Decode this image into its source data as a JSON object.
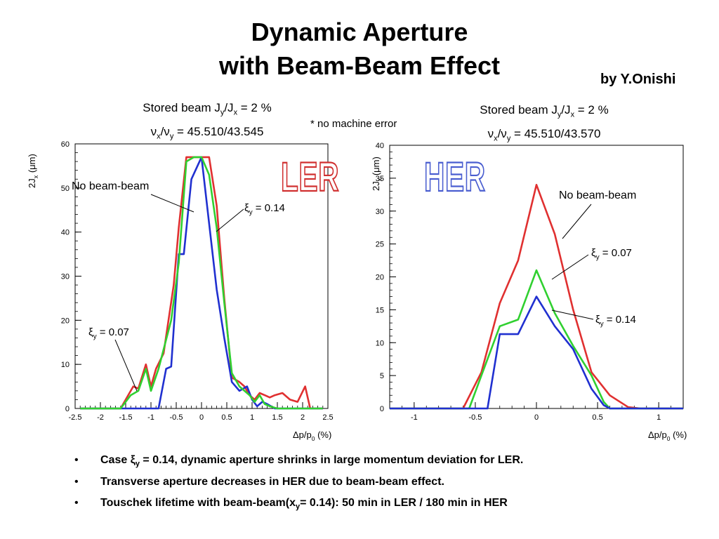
{
  "title_line1": "Dynamic Aperture",
  "title_line2": "with Beam-Beam Effect",
  "byline": "by Y.Onishi",
  "note": "* no machine error",
  "ler_condition": {
    "line1_prefix": "Stored beam J",
    "line1_sub1": "y",
    "line1_mid": "/J",
    "line1_sub2": "x",
    "line1_suffix": " = 2 %",
    "line2_nu": "ν",
    "line2_sub1": "x",
    "line2_mid": "/ν",
    "line2_sub2": "y",
    "line2_suffix": " = 45.510/43.545"
  },
  "her_condition": {
    "line1_prefix": "Stored beam J",
    "line1_sub1": "y",
    "line1_mid": "/J",
    "line1_sub2": "x",
    "line1_suffix": " = 2 %",
    "line2_nu": "ν",
    "line2_sub1": "x",
    "line2_mid": "/ν",
    "line2_sub2": "y",
    "line2_suffix": " = 45.510/43.570"
  },
  "bullets": {
    "b1_pre": "Case ",
    "b1_xi": "ξ",
    "b1_sub": "y",
    "b1_post": " = 0.14, dynamic aperture shrinks in large momentum deviation for LER.",
    "b2": "Transverse aperture decreases in HER due to beam-beam effect.",
    "b3_pre": "Touschek lifetime with beam-beam(x",
    "b3_sub": "y",
    "b3_post": "= 0.14): 50 min in LER / 180 min in HER"
  },
  "chart_data": [
    {
      "type": "line",
      "logo": "LER",
      "logo_color": "#d03030",
      "ylabel": "2J_x (μm)",
      "xlabel": "Δp/p_0 (%)",
      "xlim": [
        -2.5,
        2.5
      ],
      "ylim": [
        0,
        60
      ],
      "xticks": [
        -2.5,
        -2,
        -1.5,
        -1,
        -0.5,
        0,
        0.5,
        1,
        1.5,
        2,
        2.5
      ],
      "xtick_labels": [
        "-2.5",
        "-2",
        "-1.5",
        "-1",
        "-0.5",
        "0",
        "0.5",
        "1",
        "1.5",
        "2",
        "2.5"
      ],
      "yticks": [
        0,
        10,
        20,
        30,
        40,
        50,
        60
      ],
      "ytick_labels": [
        "0",
        "10",
        "20",
        "30",
        "40",
        "50",
        "60"
      ],
      "series": [
        {
          "name": "No beam-beam",
          "color": "#e03030",
          "x": [
            -2.4,
            -1.6,
            -1.5,
            -1.35,
            -1.25,
            -1.1,
            -1.0,
            -0.9,
            -0.75,
            -0.55,
            -0.45,
            -0.3,
            -0.15,
            0,
            0.15,
            0.3,
            0.45,
            0.6,
            0.75,
            0.85,
            0.95,
            1.05,
            1.15,
            1.25,
            1.35,
            1.45,
            1.6,
            1.75,
            1.9,
            2.05,
            2.15,
            2.3,
            2.4
          ],
          "y": [
            0,
            0,
            2,
            5,
            4.5,
            10,
            5,
            9,
            12.5,
            28,
            41,
            57,
            57,
            57,
            57,
            46,
            25,
            7,
            6,
            5,
            3,
            2,
            3.5,
            3,
            2.5,
            3,
            3.5,
            2,
            1.5,
            5,
            0,
            0,
            0
          ]
        },
        {
          "name": "ξ_y = 0.14",
          "color": "#2030d0",
          "x": [
            -2.4,
            -0.85,
            -0.7,
            -0.6,
            -0.45,
            -0.35,
            -0.2,
            0,
            0.15,
            0.3,
            0.45,
            0.6,
            0.75,
            0.9,
            1.0,
            1.1,
            1.2,
            1.3,
            1.45,
            2.4
          ],
          "y": [
            0,
            0,
            9,
            9.5,
            35,
            35,
            52,
            57,
            42,
            27,
            16,
            6,
            4,
            5,
            2,
            0.5,
            1.5,
            1,
            0,
            0
          ]
        },
        {
          "name": "ξ_y = 0.07",
          "color": "#30d030",
          "x": [
            -2.4,
            -1.6,
            -1.4,
            -1.25,
            -1.1,
            -1.0,
            -0.85,
            -0.6,
            -0.45,
            -0.3,
            -0.15,
            0,
            0.15,
            0.3,
            0.45,
            0.6,
            0.75,
            0.85,
            0.95,
            1.05,
            1.15,
            1.25,
            1.35,
            1.5,
            2.4
          ],
          "y": [
            0,
            0,
            3,
            4,
            9,
            4,
            9,
            20,
            33,
            56,
            57,
            57,
            53,
            41,
            24,
            8,
            5,
            4,
            3,
            1.5,
            3,
            1,
            0.5,
            0,
            0
          ]
        }
      ],
      "annotations": [
        {
          "text_key": "nobb",
          "label": "No beam-beam"
        },
        {
          "text_key": "xi014",
          "label": "ξ",
          "sub": "y",
          "value": " = 0.14"
        },
        {
          "text_key": "xi007",
          "label": "ξ",
          "sub": "y",
          "value": " = 0.07"
        }
      ]
    },
    {
      "type": "line",
      "logo": "HER",
      "logo_color": "#4a5ed0",
      "ylabel": "2J_x (μm)",
      "xlabel": "Δp/p_0 (%)",
      "xlim": [
        -1.2,
        1.2
      ],
      "ylim": [
        0,
        40
      ],
      "xticks": [
        -1,
        -0.5,
        0,
        0.5,
        1
      ],
      "xtick_labels": [
        "-1",
        "-0.5",
        "0",
        "0.5",
        "1"
      ],
      "yticks": [
        0,
        5,
        10,
        15,
        20,
        25,
        30,
        35,
        40
      ],
      "ytick_labels": [
        "0",
        "5",
        "10",
        "15",
        "20",
        "25",
        "30",
        "35",
        "40"
      ],
      "series": [
        {
          "name": "No beam-beam",
          "color": "#e03030",
          "x": [
            -1.2,
            -0.6,
            -0.45,
            -0.3,
            -0.15,
            0,
            0.15,
            0.3,
            0.45,
            0.6,
            0.75,
            0.85,
            1.2
          ],
          "y": [
            0,
            0,
            5.5,
            16,
            22.5,
            34,
            26.5,
            15,
            5.5,
            2,
            0.2,
            0,
            0
          ]
        },
        {
          "name": "ξ_y = 0.07",
          "color": "#30d030",
          "x": [
            -1.2,
            -0.55,
            -0.45,
            -0.3,
            -0.15,
            0,
            0.15,
            0.3,
            0.45,
            0.55,
            0.6,
            1.2
          ],
          "y": [
            0,
            0,
            5,
            12.5,
            13.5,
            21,
            14.5,
            9.5,
            5,
            1,
            0,
            0
          ]
        },
        {
          "name": "ξ_y = 0.14",
          "color": "#2030d0",
          "x": [
            -1.2,
            -0.4,
            -0.3,
            -0.15,
            0,
            0.15,
            0.3,
            0.45,
            0.55,
            0.6,
            1.2
          ],
          "y": [
            0,
            0,
            11.3,
            11.3,
            17,
            12.5,
            9,
            3,
            0.5,
            0,
            0
          ]
        }
      ],
      "annotations": [
        {
          "text_key": "nobb",
          "label": "No beam-beam"
        },
        {
          "text_key": "xi007",
          "label": "ξ",
          "sub": "y",
          "value": " = 0.07"
        },
        {
          "text_key": "xi014",
          "label": "ξ",
          "sub": "y",
          "value": " = 0.14"
        }
      ]
    }
  ]
}
